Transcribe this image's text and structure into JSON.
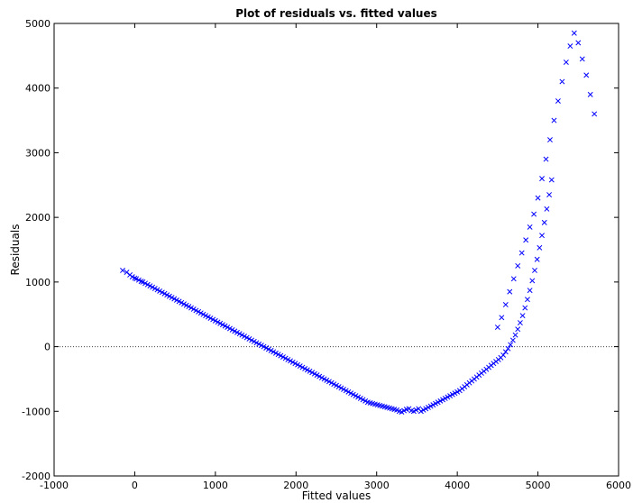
{
  "chart_data": {
    "type": "scatter",
    "title": "Plot of residuals vs. fitted values",
    "xlabel": "Fitted values",
    "ylabel": "Residuals",
    "xlim": [
      -1000,
      6000
    ],
    "ylim": [
      -2000,
      5000
    ],
    "xticks": [
      -1000,
      0,
      1000,
      2000,
      3000,
      4000,
      5000,
      6000
    ],
    "yticks": [
      -2000,
      -1000,
      0,
      1000,
      2000,
      3000,
      4000,
      5000
    ],
    "marker": "x",
    "marker_color": "#0000ff",
    "reference_line": {
      "y": 0,
      "style": "dotted",
      "color": "#000000"
    },
    "grid": false,
    "series": [
      {
        "points": [
          [
            -150,
            1180
          ],
          [
            -100,
            1150
          ],
          [
            -60,
            1110
          ],
          [
            -30,
            1080
          ],
          [
            0,
            1060
          ],
          [
            20,
            1050
          ],
          [
            50,
            1030
          ],
          [
            80,
            1010
          ],
          [
            100,
            1000
          ],
          [
            130,
            980
          ],
          [
            160,
            960
          ],
          [
            190,
            940
          ],
          [
            220,
            920
          ],
          [
            250,
            900
          ],
          [
            280,
            880
          ],
          [
            310,
            860
          ],
          [
            340,
            840
          ],
          [
            370,
            820
          ],
          [
            400,
            800
          ],
          [
            430,
            780
          ],
          [
            460,
            760
          ],
          [
            490,
            740
          ],
          [
            520,
            720
          ],
          [
            550,
            700
          ],
          [
            580,
            680
          ],
          [
            610,
            660
          ],
          [
            640,
            640
          ],
          [
            670,
            620
          ],
          [
            700,
            600
          ],
          [
            730,
            580
          ],
          [
            760,
            560
          ],
          [
            790,
            540
          ],
          [
            820,
            520
          ],
          [
            850,
            500
          ],
          [
            880,
            480
          ],
          [
            910,
            460
          ],
          [
            940,
            440
          ],
          [
            970,
            420
          ],
          [
            1000,
            400
          ],
          [
            1030,
            380
          ],
          [
            1060,
            360
          ],
          [
            1090,
            340
          ],
          [
            1120,
            320
          ],
          [
            1150,
            300
          ],
          [
            1180,
            280
          ],
          [
            1210,
            260
          ],
          [
            1240,
            240
          ],
          [
            1270,
            220
          ],
          [
            1300,
            200
          ],
          [
            1330,
            180
          ],
          [
            1360,
            160
          ],
          [
            1390,
            140
          ],
          [
            1420,
            120
          ],
          [
            1450,
            100
          ],
          [
            1480,
            80
          ],
          [
            1510,
            60
          ],
          [
            1540,
            40
          ],
          [
            1570,
            20
          ],
          [
            1600,
            0
          ],
          [
            1630,
            -20
          ],
          [
            1660,
            -40
          ],
          [
            1690,
            -60
          ],
          [
            1720,
            -80
          ],
          [
            1750,
            -100
          ],
          [
            1780,
            -120
          ],
          [
            1810,
            -140
          ],
          [
            1840,
            -160
          ],
          [
            1870,
            -180
          ],
          [
            1900,
            -200
          ],
          [
            1930,
            -220
          ],
          [
            1960,
            -240
          ],
          [
            1990,
            -260
          ],
          [
            2020,
            -280
          ],
          [
            2050,
            -300
          ],
          [
            2080,
            -320
          ],
          [
            2110,
            -340
          ],
          [
            2140,
            -360
          ],
          [
            2170,
            -380
          ],
          [
            2200,
            -400
          ],
          [
            2230,
            -420
          ],
          [
            2260,
            -440
          ],
          [
            2290,
            -460
          ],
          [
            2320,
            -480
          ],
          [
            2350,
            -500
          ],
          [
            2380,
            -520
          ],
          [
            2410,
            -540
          ],
          [
            2440,
            -560
          ],
          [
            2470,
            -580
          ],
          [
            2500,
            -600
          ],
          [
            2530,
            -620
          ],
          [
            2560,
            -640
          ],
          [
            2590,
            -660
          ],
          [
            2620,
            -680
          ],
          [
            2650,
            -700
          ],
          [
            2680,
            -720
          ],
          [
            2710,
            -740
          ],
          [
            2740,
            -760
          ],
          [
            2770,
            -780
          ],
          [
            2800,
            -800
          ],
          [
            2830,
            -820
          ],
          [
            2860,
            -840
          ],
          [
            2890,
            -860
          ],
          [
            2920,
            -870
          ],
          [
            2950,
            -880
          ],
          [
            2980,
            -890
          ],
          [
            3010,
            -900
          ],
          [
            3040,
            -910
          ],
          [
            3070,
            -920
          ],
          [
            3100,
            -930
          ],
          [
            3130,
            -940
          ],
          [
            3160,
            -950
          ],
          [
            3190,
            -960
          ],
          [
            3220,
            -970
          ],
          [
            3250,
            -980
          ],
          [
            3280,
            -1000
          ],
          [
            3310,
            -1010
          ],
          [
            3340,
            -990
          ],
          [
            3370,
            -970
          ],
          [
            3400,
            -960
          ],
          [
            3430,
            -990
          ],
          [
            3460,
            -1000
          ],
          [
            3490,
            -980
          ],
          [
            3520,
            -960
          ],
          [
            3550,
            -1000
          ],
          [
            3580,
            -980
          ],
          [
            3610,
            -960
          ],
          [
            3640,
            -940
          ],
          [
            3670,
            -920
          ],
          [
            3700,
            -900
          ],
          [
            3730,
            -880
          ],
          [
            3760,
            -860
          ],
          [
            3790,
            -840
          ],
          [
            3820,
            -820
          ],
          [
            3850,
            -800
          ],
          [
            3880,
            -780
          ],
          [
            3910,
            -760
          ],
          [
            3940,
            -740
          ],
          [
            3970,
            -720
          ],
          [
            4000,
            -700
          ],
          [
            4030,
            -680
          ],
          [
            4060,
            -650
          ],
          [
            4090,
            -620
          ],
          [
            4120,
            -590
          ],
          [
            4150,
            -560
          ],
          [
            4180,
            -530
          ],
          [
            4210,
            -500
          ],
          [
            4240,
            -470
          ],
          [
            4270,
            -440
          ],
          [
            4300,
            -410
          ],
          [
            4330,
            -380
          ],
          [
            4360,
            -350
          ],
          [
            4390,
            -320
          ],
          [
            4420,
            -290
          ],
          [
            4450,
            -260
          ],
          [
            4480,
            -230
          ],
          [
            4510,
            -200
          ],
          [
            4540,
            -170
          ],
          [
            4570,
            -130
          ],
          [
            4600,
            -80
          ],
          [
            4630,
            -30
          ],
          [
            4660,
            30
          ],
          [
            4690,
            100
          ],
          [
            4720,
            180
          ],
          [
            4750,
            270
          ],
          [
            4780,
            370
          ],
          [
            4810,
            480
          ],
          [
            4840,
            600
          ],
          [
            4870,
            730
          ],
          [
            4900,
            870
          ],
          [
            4930,
            1020
          ],
          [
            4960,
            1180
          ],
          [
            4990,
            1350
          ],
          [
            5020,
            1530
          ],
          [
            5050,
            1720
          ],
          [
            5080,
            1920
          ],
          [
            5110,
            2130
          ],
          [
            5140,
            2350
          ],
          [
            5170,
            2580
          ],
          [
            4500,
            300
          ],
          [
            4550,
            450
          ],
          [
            4600,
            650
          ],
          [
            4650,
            850
          ],
          [
            4700,
            1050
          ],
          [
            4750,
            1250
          ],
          [
            4800,
            1450
          ],
          [
            4850,
            1650
          ],
          [
            4900,
            1850
          ],
          [
            4950,
            2050
          ],
          [
            5000,
            2300
          ],
          [
            5050,
            2600
          ],
          [
            5100,
            2900
          ],
          [
            5150,
            3200
          ],
          [
            5200,
            3500
          ],
          [
            5250,
            3800
          ],
          [
            5300,
            4100
          ],
          [
            5350,
            4400
          ],
          [
            5400,
            4650
          ],
          [
            5450,
            4850
          ],
          [
            5500,
            4700
          ],
          [
            5550,
            4450
          ],
          [
            5600,
            4200
          ],
          [
            5650,
            3900
          ],
          [
            5700,
            3600
          ]
        ]
      }
    ]
  }
}
